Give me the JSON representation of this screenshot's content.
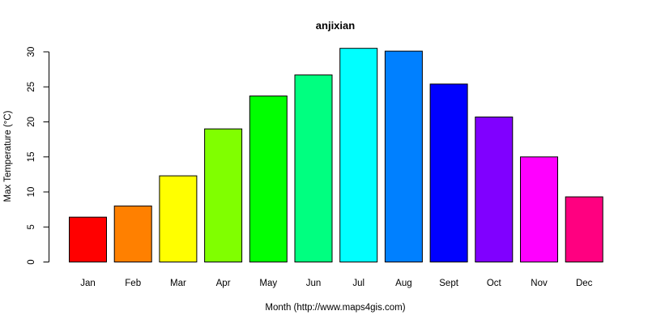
{
  "chart_data": {
    "type": "bar",
    "title": "anjixian",
    "xlabel": "Month (http://www.maps4gis.com)",
    "ylabel": "Max Temperature (°C)",
    "categories": [
      "Jan",
      "Feb",
      "Mar",
      "Apr",
      "May",
      "Jun",
      "Jul",
      "Aug",
      "Sept",
      "Oct",
      "Nov",
      "Dec"
    ],
    "values": [
      6.4,
      8.0,
      12.3,
      19.0,
      23.7,
      26.7,
      30.5,
      30.1,
      25.4,
      20.7,
      15.0,
      9.3
    ],
    "colors": [
      "#FF0000",
      "#FF8000",
      "#FFFF00",
      "#80FF00",
      "#00FF00",
      "#00FF80",
      "#00FFFF",
      "#0080FF",
      "#0000FF",
      "#8000FF",
      "#FF00FF",
      "#FF0080"
    ],
    "yticks": [
      "0",
      "5",
      "10",
      "15",
      "20",
      "25",
      "30"
    ],
    "ylim": [
      0,
      30
    ],
    "grid": false,
    "legend": "none"
  }
}
